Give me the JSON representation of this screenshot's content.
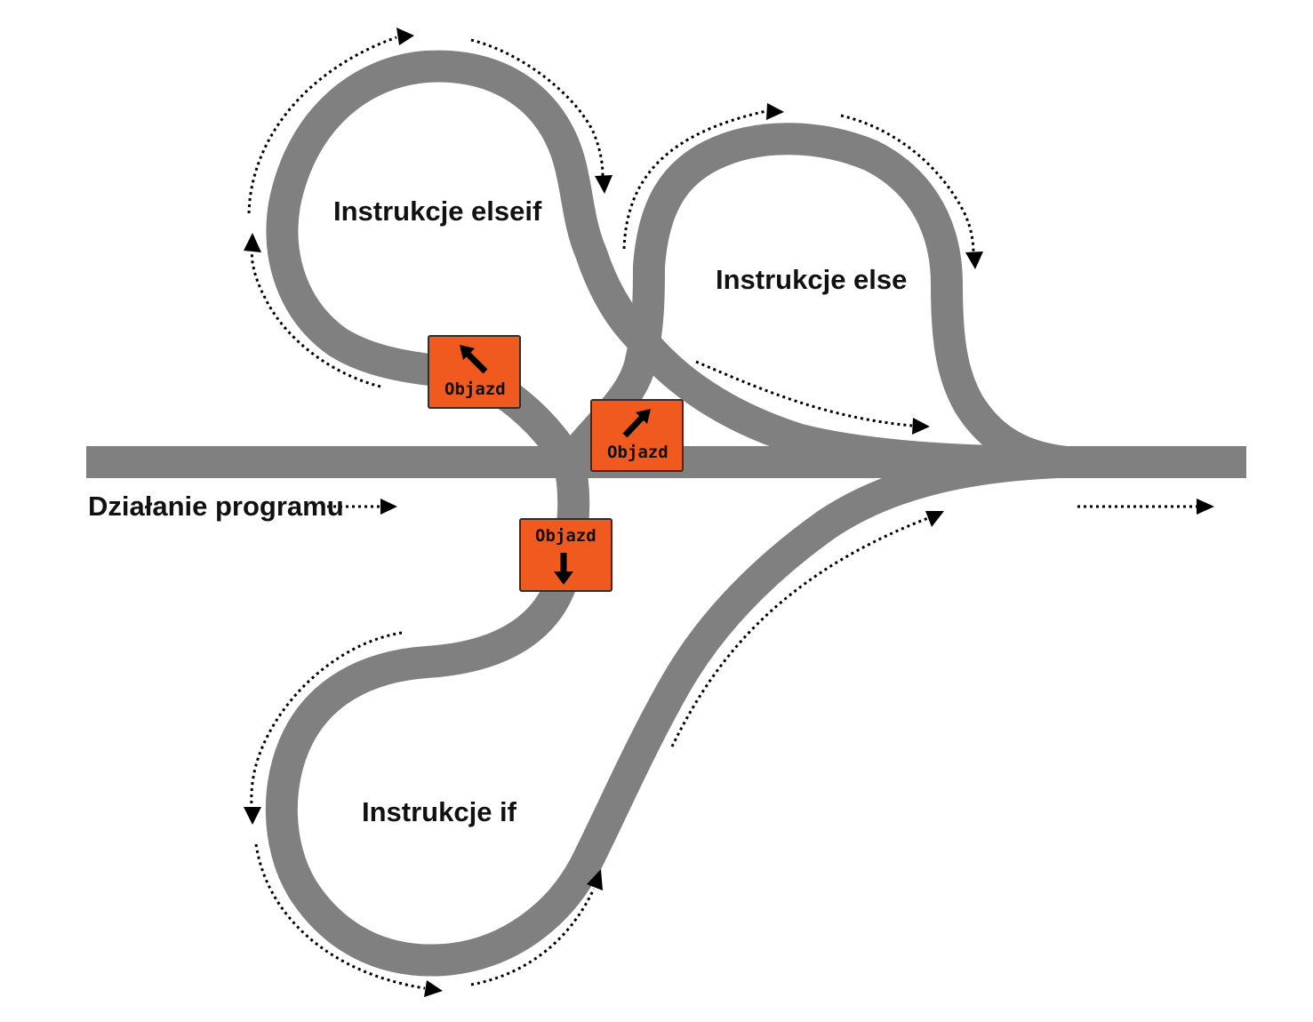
{
  "labels": {
    "program_flow": "Działanie programu",
    "elseif_block": "Instrukcje elseif",
    "else_block": "Instrukcje else",
    "if_block": "Instrukcje if"
  },
  "signs": {
    "elseif_detour": {
      "text": "Objazd",
      "arrow": "arrow-up-left-icon"
    },
    "else_detour": {
      "text": "Objazd",
      "arrow": "arrow-up-right-icon"
    },
    "if_detour": {
      "text": "Objazd",
      "arrow": "arrow-down-icon"
    }
  },
  "colors": {
    "road": "#808080",
    "sign": "#f05a1e",
    "arrows": "#000000",
    "background": "#ffffff"
  }
}
